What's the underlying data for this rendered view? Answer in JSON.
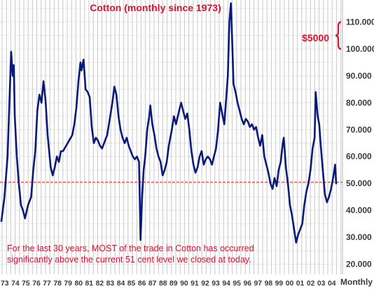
{
  "chart_data": {
    "type": "line",
    "title": "Cotton (monthly since 1973)",
    "frequency_label": "Monthly",
    "y_axis_side": "right",
    "ylim": [
      16,
      118
    ],
    "y_ticks": [
      20,
      30,
      40,
      50,
      60,
      70,
      80,
      90,
      100,
      110
    ],
    "y_tick_labels": [
      "20.000",
      "30.000",
      "40.000",
      "50.000",
      "60.000",
      "70.000",
      "80.000",
      "90.000",
      "100.000",
      "110.000"
    ],
    "x_range": [
      1973,
      2005.6
    ],
    "x_tick_labels": [
      "73",
      "74",
      "75",
      "76",
      "77",
      "78",
      "79",
      "80",
      "81",
      "82",
      "83",
      "84",
      "85",
      "86",
      "87",
      "88",
      "89",
      "90",
      "91",
      "92",
      "93",
      "94",
      "95",
      "96",
      "97",
      "98",
      "99",
      "00",
      "01",
      "02",
      "03",
      "04"
    ],
    "grid": true,
    "line_color": "#0a1a7a",
    "reference_line": {
      "value": 50.5,
      "color": "#dd2222"
    },
    "bracket": {
      "label": "$5000",
      "range": [
        100,
        110
      ],
      "color": "#dd1133"
    },
    "annotation": {
      "line1": "For the last 30 years, MOST of the trade in Cotton has occurred",
      "line2": "significantly above the current 51 cent level we closed at today.",
      "color": "#dd1133"
    },
    "series": [
      {
        "values": [
          [
            1973.0,
            36
          ],
          [
            1973.3,
            45
          ],
          [
            1973.6,
            60
          ],
          [
            1973.8,
            82
          ],
          [
            1973.95,
            99
          ],
          [
            1974.1,
            90
          ],
          [
            1974.2,
            94
          ],
          [
            1974.3,
            75
          ],
          [
            1974.5,
            60
          ],
          [
            1974.7,
            50
          ],
          [
            1974.9,
            42
          ],
          [
            1975.1,
            40
          ],
          [
            1975.3,
            37
          ],
          [
            1975.6,
            42
          ],
          [
            1975.9,
            45
          ],
          [
            1976.1,
            55
          ],
          [
            1976.3,
            62
          ],
          [
            1976.5,
            77
          ],
          [
            1976.7,
            83
          ],
          [
            1976.9,
            80
          ],
          [
            1977.1,
            88
          ],
          [
            1977.3,
            81
          ],
          [
            1977.5,
            68
          ],
          [
            1977.8,
            56
          ],
          [
            1978.0,
            53
          ],
          [
            1978.2,
            56
          ],
          [
            1978.4,
            60
          ],
          [
            1978.6,
            58
          ],
          [
            1978.8,
            62
          ],
          [
            1979.0,
            62
          ],
          [
            1979.3,
            64
          ],
          [
            1979.6,
            66
          ],
          [
            1979.9,
            68
          ],
          [
            1980.1,
            72
          ],
          [
            1980.3,
            78
          ],
          [
            1980.5,
            88
          ],
          [
            1980.7,
            95
          ],
          [
            1980.8,
            92
          ],
          [
            1981.0,
            96
          ],
          [
            1981.2,
            85
          ],
          [
            1981.4,
            84
          ],
          [
            1981.6,
            82
          ],
          [
            1981.8,
            71
          ],
          [
            1982.0,
            65
          ],
          [
            1982.2,
            67
          ],
          [
            1982.4,
            66
          ],
          [
            1982.6,
            64
          ],
          [
            1982.8,
            63
          ],
          [
            1983.0,
            65
          ],
          [
            1983.3,
            68
          ],
          [
            1983.6,
            75
          ],
          [
            1983.8,
            80
          ],
          [
            1984.0,
            86
          ],
          [
            1984.2,
            83
          ],
          [
            1984.4,
            75
          ],
          [
            1984.6,
            70
          ],
          [
            1984.8,
            67
          ],
          [
            1985.0,
            65
          ],
          [
            1985.2,
            67
          ],
          [
            1985.4,
            64
          ],
          [
            1985.6,
            62
          ],
          [
            1985.8,
            60
          ],
          [
            1986.0,
            59
          ],
          [
            1986.2,
            60
          ],
          [
            1986.4,
            58
          ],
          [
            1986.55,
            29
          ],
          [
            1986.7,
            45
          ],
          [
            1986.85,
            55
          ],
          [
            1987.0,
            60
          ],
          [
            1987.2,
            70
          ],
          [
            1987.4,
            75
          ],
          [
            1987.5,
            79
          ],
          [
            1987.7,
            72
          ],
          [
            1987.9,
            68
          ],
          [
            1988.1,
            63
          ],
          [
            1988.3,
            60
          ],
          [
            1988.5,
            58
          ],
          [
            1988.7,
            53
          ],
          [
            1988.9,
            55
          ],
          [
            1989.1,
            58
          ],
          [
            1989.3,
            64
          ],
          [
            1989.6,
            70
          ],
          [
            1989.8,
            75
          ],
          [
            1990.0,
            72
          ],
          [
            1990.3,
            77
          ],
          [
            1990.5,
            80
          ],
          [
            1990.7,
            77
          ],
          [
            1990.9,
            74
          ],
          [
            1991.1,
            76
          ],
          [
            1991.3,
            70
          ],
          [
            1991.5,
            62
          ],
          [
            1991.7,
            57
          ],
          [
            1991.9,
            54
          ],
          [
            1992.1,
            56
          ],
          [
            1992.3,
            60
          ],
          [
            1992.5,
            62
          ],
          [
            1992.7,
            57
          ],
          [
            1992.9,
            59
          ],
          [
            1993.1,
            60
          ],
          [
            1993.3,
            59
          ],
          [
            1993.5,
            57
          ],
          [
            1993.7,
            60
          ],
          [
            1993.9,
            63
          ],
          [
            1994.1,
            70
          ],
          [
            1994.3,
            80
          ],
          [
            1994.5,
            76
          ],
          [
            1994.7,
            72
          ],
          [
            1994.9,
            82
          ],
          [
            1995.05,
            90
          ],
          [
            1995.2,
            110
          ],
          [
            1995.35,
            117
          ],
          [
            1995.5,
            100
          ],
          [
            1995.6,
            87
          ],
          [
            1995.8,
            84
          ],
          [
            1996.0,
            80
          ],
          [
            1996.2,
            77
          ],
          [
            1996.4,
            74
          ],
          [
            1996.6,
            72
          ],
          [
            1996.8,
            74
          ],
          [
            1997.0,
            73
          ],
          [
            1997.2,
            71
          ],
          [
            1997.4,
            72
          ],
          [
            1997.6,
            70
          ],
          [
            1997.8,
            71
          ],
          [
            1998.0,
            67
          ],
          [
            1998.2,
            64
          ],
          [
            1998.4,
            68
          ],
          [
            1998.6,
            60
          ],
          [
            1998.8,
            57
          ],
          [
            1999.0,
            54
          ],
          [
            1999.2,
            50
          ],
          [
            1999.4,
            48
          ],
          [
            1999.6,
            52
          ],
          [
            1999.8,
            49
          ],
          [
            2000.0,
            55
          ],
          [
            2000.2,
            58
          ],
          [
            2000.4,
            65
          ],
          [
            2000.5,
            67
          ],
          [
            2000.7,
            56
          ],
          [
            2000.9,
            50
          ],
          [
            2001.1,
            42
          ],
          [
            2001.3,
            38
          ],
          [
            2001.5,
            33
          ],
          [
            2001.7,
            28
          ],
          [
            2001.9,
            31
          ],
          [
            2002.1,
            33
          ],
          [
            2002.3,
            35
          ],
          [
            2002.5,
            42
          ],
          [
            2002.7,
            47
          ],
          [
            2002.9,
            50
          ],
          [
            2003.1,
            55
          ],
          [
            2003.3,
            63
          ],
          [
            2003.5,
            67
          ],
          [
            2003.6,
            84
          ],
          [
            2003.8,
            75
          ],
          [
            2003.95,
            72
          ],
          [
            2004.1,
            64
          ],
          [
            2004.3,
            55
          ],
          [
            2004.5,
            46
          ],
          [
            2004.7,
            43
          ],
          [
            2004.9,
            45
          ],
          [
            2005.1,
            48
          ],
          [
            2005.3,
            52
          ],
          [
            2005.5,
            57
          ],
          [
            2005.6,
            50
          ]
        ]
      }
    ]
  }
}
